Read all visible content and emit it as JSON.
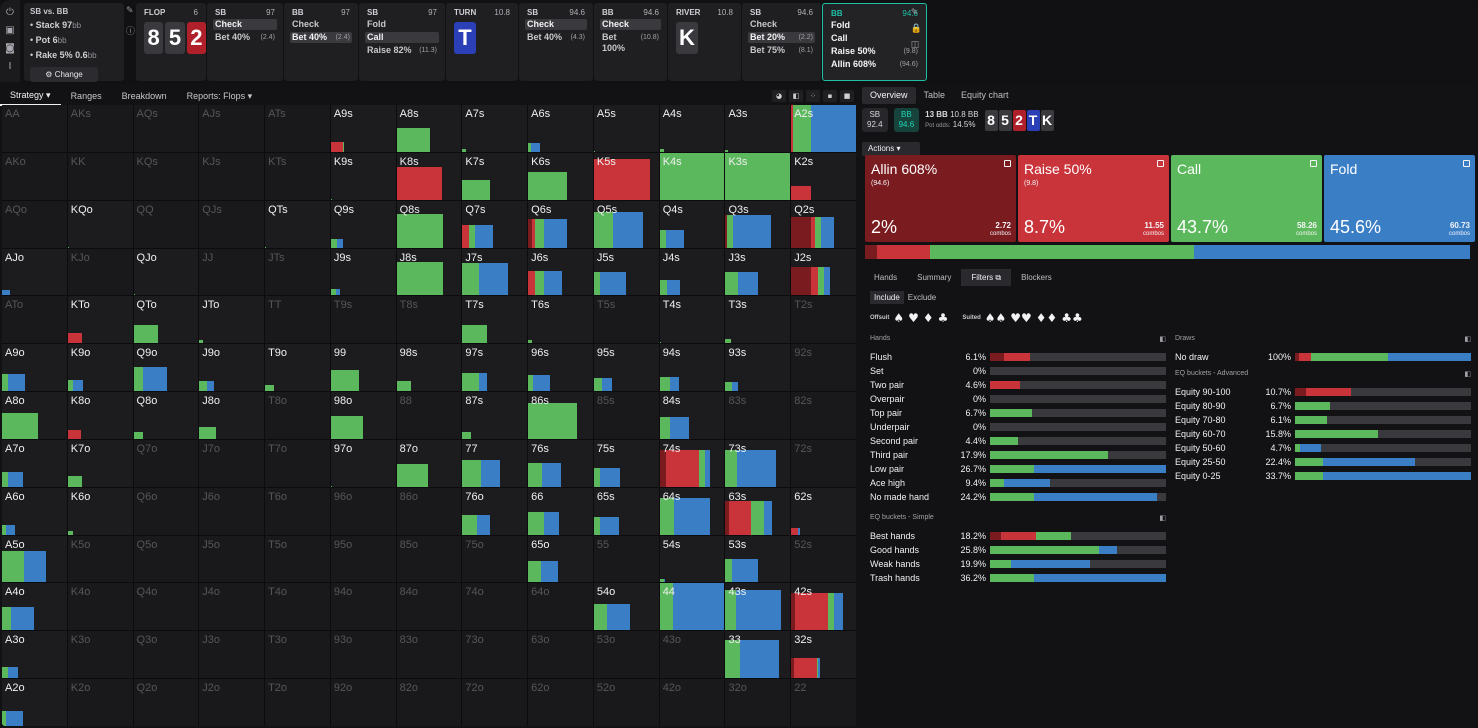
{
  "sidebar": {
    "icons": [
      "power-icon",
      "save-icon",
      "gamepad-icon",
      "text-cursor-icon"
    ]
  },
  "info": {
    "title": "SB vs. BB",
    "stack": "Stack 97",
    "stack_unit": "bb",
    "pot": "Pot 6",
    "pot_unit": "bb",
    "rake": "Rake 5% 0.6",
    "rake_unit": "bb",
    "change": "Change"
  },
  "colors": {
    "allin": "#7a1b1f",
    "raise": "#c9343a",
    "call": "#5cb85c",
    "fold": "#3a7fc6",
    "accent": "#1fbfa6"
  },
  "spots": [
    {
      "type": "board",
      "label": "FLOP",
      "stack": "6",
      "cards": [
        {
          "r": "8",
          "s": "s"
        },
        {
          "r": "5",
          "s": "s"
        },
        {
          "r": "2",
          "s": "h"
        }
      ]
    },
    {
      "type": "action",
      "label": "SB",
      "stack": "97",
      "actions": [
        {
          "n": "Check",
          "v": "",
          "sel": true
        },
        {
          "n": "Bet 40%",
          "v": "(2.4)",
          "sel": false
        }
      ]
    },
    {
      "type": "action",
      "label": "BB",
      "stack": "97",
      "actions": [
        {
          "n": "Check",
          "v": "",
          "sel": false
        },
        {
          "n": "Bet 40%",
          "v": "(2.4)",
          "sel": true
        }
      ]
    },
    {
      "type": "action",
      "label": "SB",
      "stack": "97",
      "actions": [
        {
          "n": "Fold",
          "v": "",
          "sel": false
        },
        {
          "n": "Call",
          "v": "",
          "sel": true
        },
        {
          "n": "Raise 82%",
          "v": "(11.3)",
          "sel": false
        }
      ]
    },
    {
      "type": "board",
      "label": "TURN",
      "stack": "10.8",
      "cards": [
        {
          "r": "T",
          "s": "d"
        }
      ]
    },
    {
      "type": "action",
      "label": "SB",
      "stack": "94.6",
      "actions": [
        {
          "n": "Check",
          "v": "",
          "sel": true
        },
        {
          "n": "Bet 40%",
          "v": "(4.3)",
          "sel": false
        }
      ]
    },
    {
      "type": "action",
      "label": "BB",
      "stack": "94.6",
      "actions": [
        {
          "n": "Check",
          "v": "",
          "sel": true
        },
        {
          "n": "Bet 100%",
          "v": "(10.8)",
          "sel": false
        }
      ]
    },
    {
      "type": "board",
      "label": "RIVER",
      "stack": "10.8",
      "cards": [
        {
          "r": "K",
          "s": "s"
        }
      ]
    },
    {
      "type": "action",
      "label": "SB",
      "stack": "94.6",
      "actions": [
        {
          "n": "Check",
          "v": "",
          "sel": false
        },
        {
          "n": "Bet 20%",
          "v": "(2.2)",
          "sel": true
        },
        {
          "n": "Bet 75%",
          "v": "(8.1)",
          "sel": false
        }
      ]
    },
    {
      "type": "active",
      "label": "BB",
      "stack": "94.6",
      "actions": [
        {
          "n": "Fold",
          "v": "",
          "sel": false
        },
        {
          "n": "Call",
          "v": "",
          "sel": false
        },
        {
          "n": "Raise 50%",
          "v": "(9.8)",
          "sel": false
        },
        {
          "n": "Allin 608%",
          "v": "(94.6)",
          "sel": false
        }
      ]
    }
  ],
  "grid_tabs": [
    "Strategy",
    "Ranges",
    "Breakdown",
    "Reports: Flops"
  ],
  "grid": [
    [
      "AA",
      "",
      "",
      0
    ],
    [
      "AKs",
      "",
      "",
      0
    ],
    [
      "AQs",
      "",
      "",
      0
    ],
    [
      "AJs",
      "",
      "",
      0
    ],
    [
      "ATs",
      "",
      "",
      0
    ],
    [
      "A9s",
      "",
      "0,0.18,0.02,0",
      1
    ],
    [
      "A8s",
      "",
      "0,0,0.52,0",
      1
    ],
    [
      "A7s",
      "",
      "0,0,0.06,0",
      1
    ],
    [
      "A6s",
      "",
      "0,0,0.04,0.14",
      1
    ],
    [
      "A5s",
      "",
      "0,0,0.02,0",
      1
    ],
    [
      "A4s",
      "",
      "0,0,0.06,0",
      1
    ],
    [
      "A3s",
      "",
      "0,0,0.04,0",
      1
    ],
    [
      "A2s",
      "",
      "0,0.02,0.28,0.7",
      1
    ],
    [
      "AKo",
      "",
      "",
      0
    ],
    [
      "KK",
      "",
      "",
      0
    ],
    [
      "KQs",
      "",
      "",
      0
    ],
    [
      "KJs",
      "",
      "",
      0
    ],
    [
      "KTs",
      "",
      "",
      0
    ],
    [
      "K9s",
      "",
      "0,0,0.02,0",
      1
    ],
    [
      "K8s",
      "",
      "0,0.7,0,0",
      1
    ],
    [
      "K7s",
      "",
      "0,0,0.42,0",
      1
    ],
    [
      "K6s",
      "",
      "0,0,0.6,0",
      1
    ],
    [
      "K5s",
      "",
      "0,0.86,0,0",
      1
    ],
    [
      "K4s",
      "",
      "0,0,1,0",
      1
    ],
    [
      "K3s",
      "",
      "0,0,1,0",
      1
    ],
    [
      "K2s",
      "",
      "0,0.3,0,0",
      1
    ],
    [
      "AQo",
      "",
      "",
      0
    ],
    [
      "KQo",
      "",
      "0,0,0.02,0",
      1
    ],
    [
      "QQ",
      "",
      "",
      0
    ],
    [
      "QJs",
      "",
      "",
      0
    ],
    [
      "QTs",
      "",
      "0,0,0.02,0",
      1
    ],
    [
      "Q9s",
      "",
      "0,0,0.1,0.08",
      1
    ],
    [
      "Q8s",
      "",
      "0,0,0.72,0",
      1
    ],
    [
      "Q7s",
      "",
      "0,0.1,0.1,0.28",
      1
    ],
    [
      "Q6s",
      "",
      "0.06,0.04,0.14,0.36",
      1
    ],
    [
      "Q5s",
      "",
      "0,0,0.3,0.46",
      1
    ],
    [
      "Q4s",
      "",
      "0,0,0.1,0.28",
      1
    ],
    [
      "Q3s",
      "",
      "0.02,0,0.1,0.58",
      1
    ],
    [
      "Q2s",
      "",
      "0.3,0.06,0.1,0.2",
      1
    ],
    [
      "AJo",
      "",
      "0,0,0,0.12",
      1
    ],
    [
      "KJo",
      "",
      "",
      0
    ],
    [
      "QJo",
      "",
      "0,0,0.03,0",
      1
    ],
    [
      "JJ",
      "",
      "",
      0
    ],
    [
      "JTs",
      "",
      "",
      0
    ],
    [
      "J9s",
      "",
      "0,0,0.08,0.06",
      1
    ],
    [
      "J8s",
      "",
      "0,0,0.72,0",
      1
    ],
    [
      "J7s",
      "",
      "0,0,0.26,0.44",
      1
    ],
    [
      "J6s",
      "",
      "0,0.1,0.14,0.28",
      1
    ],
    [
      "J5s",
      "",
      "0,0,0.1,0.4",
      1
    ],
    [
      "J4s",
      "",
      "0,0,0.12,0.2",
      1
    ],
    [
      "J3s",
      "",
      "0,0,0.2,0.3",
      1
    ],
    [
      "J2s",
      "",
      "0.3,0.12,0.08,0.1",
      1
    ],
    [
      "ATo",
      "",
      "",
      0
    ],
    [
      "KTo",
      "",
      "0,0.22,0,0",
      1
    ],
    [
      "QTo",
      "",
      "0,0,0.38,0",
      1
    ],
    [
      "JTo",
      "",
      "0,0,0.06,0",
      1
    ],
    [
      "TT",
      "",
      "",
      0
    ],
    [
      "T9s",
      "",
      "",
      0
    ],
    [
      "T8s",
      "",
      "",
      0
    ],
    [
      "T7s",
      "",
      "0,0,0.38,0",
      1
    ],
    [
      "T6s",
      "",
      "0,0,0.06,0",
      1
    ],
    [
      "T5s",
      "",
      "",
      0
    ],
    [
      "T4s",
      "",
      "0,0,0.02,0",
      1
    ],
    [
      "T3s",
      "",
      "0,0,0.08,0",
      1
    ],
    [
      "T2s",
      "",
      "",
      0
    ],
    [
      "A9o",
      "",
      "0,0,0.1,0.26",
      1
    ],
    [
      "K9o",
      "",
      "0,0,0.08,0.16",
      1
    ],
    [
      "Q9o",
      "",
      "0,0,0.14,0.38",
      1
    ],
    [
      "J9o",
      "",
      "0,0,0.12,0.1",
      1
    ],
    [
      "T9o",
      "",
      "0,0,0.14,0",
      1
    ],
    [
      "99",
      "",
      "0,0,0.44,0",
      1
    ],
    [
      "98s",
      "",
      "0,0,0.22,0",
      1
    ],
    [
      "97s",
      "",
      "0,0,0.26,0.12",
      1
    ],
    [
      "96s",
      "",
      "0,0,0.08,0.26",
      1
    ],
    [
      "95s",
      "",
      "0,0,0.12,0.16",
      1
    ],
    [
      "94s",
      "",
      "0,0,0.16,0.14",
      1
    ],
    [
      "93s",
      "",
      "0,0,0.1,0.1",
      1
    ],
    [
      "92s",
      "",
      "",
      0
    ],
    [
      "A8o",
      "",
      "0,0,0.56,0",
      1
    ],
    [
      "K8o",
      "",
      "0,0.2,0,0",
      1
    ],
    [
      "Q8o",
      "",
      "0,0,0.14,0",
      1
    ],
    [
      "J8o",
      "",
      "0,0,0.26,0",
      1
    ],
    [
      "T8o",
      "",
      "",
      0
    ],
    [
      "98o",
      "",
      "0,0,0.5,0",
      1
    ],
    [
      "88",
      "",
      "",
      0
    ],
    [
      "87s",
      "",
      "0,0,0.14,0",
      1
    ],
    [
      "86s",
      "",
      "0,0,0.76,0",
      1
    ],
    [
      "85s",
      "",
      "",
      0
    ],
    [
      "84s",
      "",
      "0,0,0.16,0.3",
      1
    ],
    [
      "83s",
      "",
      "",
      0
    ],
    [
      "82s",
      "",
      "",
      0
    ],
    [
      "A7o",
      "",
      "0,0,0.1,0.22",
      1
    ],
    [
      "K7o",
      "",
      "0,0,0.22,0",
      1
    ],
    [
      "Q7o",
      "",
      "",
      0
    ],
    [
      "J7o",
      "",
      "",
      0
    ],
    [
      "T7o",
      "",
      "",
      0
    ],
    [
      "97o",
      "",
      "0,0,0.02,0",
      1
    ],
    [
      "87o",
      "",
      "0,0,0.48,0",
      1
    ],
    [
      "77",
      "",
      "0,0,0.28,0.3",
      1
    ],
    [
      "76s",
      "",
      "0,0,0.22,0.28",
      1
    ],
    [
      "75s",
      "",
      "0,0,0.1,0.3",
      1
    ],
    [
      "74s",
      "",
      "0.1,0.5,0.1,0.08",
      1
    ],
    [
      "73s",
      "",
      "0,0,0.18,0.6",
      1
    ],
    [
      "72s",
      "",
      "",
      0
    ],
    [
      "A6o",
      "",
      "0,0,0.06,0.14",
      1
    ],
    [
      "K6o",
      "",
      "0,0,0.08,0",
      1
    ],
    [
      "Q6o",
      "",
      "",
      0
    ],
    [
      "J6o",
      "",
      "",
      0
    ],
    [
      "T6o",
      "",
      "",
      0
    ],
    [
      "96o",
      "",
      "",
      0
    ],
    [
      "86o",
      "",
      "",
      0
    ],
    [
      "76o",
      "",
      "0,0,0.22,0.2",
      1
    ],
    [
      "66",
      "",
      "0,0,0.24,0.24",
      1
    ],
    [
      "65s",
      "",
      "0,0,0.1,0.28",
      1
    ],
    [
      "64s",
      "",
      "0,0,0.22,0.56",
      1
    ],
    [
      "63s",
      "",
      "0.06,0.34,0.2,0.12",
      1
    ],
    [
      "62s",
      "",
      "0,0.1,0,0.04",
      1
    ],
    [
      "A5o",
      "",
      "0,0,0.34,0.34",
      1
    ],
    [
      "K5o",
      "",
      "",
      0
    ],
    [
      "Q5o",
      "",
      "",
      0
    ],
    [
      "J5o",
      "",
      "",
      0
    ],
    [
      "T5o",
      "",
      "",
      0
    ],
    [
      "95o",
      "",
      "",
      0
    ],
    [
      "85o",
      "",
      "",
      0
    ],
    [
      "75o",
      "",
      "",
      0
    ],
    [
      "65o",
      "",
      "0,0,0.2,0.26",
      1
    ],
    [
      "55",
      "",
      "",
      0
    ],
    [
      "54s",
      "",
      "0,0,0.06,0.02",
      1
    ],
    [
      "53s",
      "",
      "0,0,0.1,0.4",
      1
    ],
    [
      "52s",
      "",
      "",
      0
    ],
    [
      "A4o",
      "",
      "0,0,0.14,0.36",
      1
    ],
    [
      "K4o",
      "",
      "",
      0
    ],
    [
      "Q4o",
      "",
      "",
      0
    ],
    [
      "J4o",
      "",
      "",
      0
    ],
    [
      "T4o",
      "",
      "",
      0
    ],
    [
      "94o",
      "",
      "",
      0
    ],
    [
      "84o",
      "",
      "",
      0
    ],
    [
      "74o",
      "",
      "",
      0
    ],
    [
      "64o",
      "",
      "",
      0
    ],
    [
      "54o",
      "",
      "0,0,0.2,0.36",
      1
    ],
    [
      "44",
      "",
      "0,0,0.2,0.8",
      1
    ],
    [
      "43s",
      "",
      "0,0,0.16,0.7",
      1
    ],
    [
      "42s",
      "",
      "0.06,0.5,0.1,0.14",
      1
    ],
    [
      "A3o",
      "",
      "0,0,0.1,0.14",
      1
    ],
    [
      "K3o",
      "",
      "",
      0
    ],
    [
      "Q3o",
      "",
      "",
      0
    ],
    [
      "J3o",
      "",
      "",
      0
    ],
    [
      "T3o",
      "",
      "",
      0
    ],
    [
      "93o",
      "",
      "",
      0
    ],
    [
      "83o",
      "",
      "",
      0
    ],
    [
      "73o",
      "",
      "",
      0
    ],
    [
      "63o",
      "",
      "",
      0
    ],
    [
      "53o",
      "",
      "",
      0
    ],
    [
      "43o",
      "",
      "",
      0
    ],
    [
      "33",
      "",
      "0,0,0.22,0.6",
      1
    ],
    [
      "32s",
      "",
      "0.04,0.36,0.02,0.02",
      1
    ],
    [
      "A2o",
      "",
      "0,0,0.06,0.26",
      1
    ],
    [
      "K2o",
      "",
      "",
      0
    ],
    [
      "Q2o",
      "",
      "",
      0
    ],
    [
      "J2o",
      "",
      "",
      0
    ],
    [
      "T2o",
      "",
      "",
      0
    ],
    [
      "92o",
      "",
      "",
      0
    ],
    [
      "82o",
      "",
      "",
      0
    ],
    [
      "72o",
      "",
      "",
      0
    ],
    [
      "62o",
      "",
      "",
      0
    ],
    [
      "52o",
      "",
      "",
      0
    ],
    [
      "42o",
      "",
      "",
      0
    ],
    [
      "32o",
      "",
      "",
      0
    ],
    [
      "22",
      "",
      "",
      0
    ]
  ],
  "right": {
    "tabs": [
      "Overview",
      "Table",
      "Equity chart"
    ],
    "players": [
      {
        "n": "SB",
        "v": "92.4"
      },
      {
        "n": "BB",
        "v": "94.6"
      }
    ],
    "pot": "13 BB",
    "pot2": "10.8 BB",
    "potodds_label": "Pot odds:",
    "potodds": "14.5%",
    "board": [
      {
        "r": "8",
        "s": "s"
      },
      {
        "r": "5",
        "s": "s"
      },
      {
        "r": "2",
        "s": "h"
      },
      {
        "r": "T",
        "s": "d"
      },
      {
        "r": "K",
        "s": "s"
      }
    ],
    "actions_label": "Actions",
    "actions": [
      {
        "name": "Allin 608%",
        "sub": "(94.6)",
        "pct": "2%",
        "combos": "2.72",
        "color": "#7a1b1f",
        "frac": 0.02
      },
      {
        "name": "Raise 50%",
        "sub": "(9.8)",
        "pct": "8.7%",
        "combos": "11.55",
        "color": "#c9343a",
        "frac": 0.087
      },
      {
        "name": "Call",
        "sub": "",
        "pct": "43.7%",
        "combos": "58.26",
        "color": "#5cb85c",
        "frac": 0.437
      },
      {
        "name": "Fold",
        "sub": "",
        "pct": "45.6%",
        "combos": "60.73",
        "color": "#3a7fc6",
        "frac": 0.456
      }
    ],
    "combos_label": "combos",
    "bottom_tabs": [
      "Hands",
      "Summary",
      "Filters",
      "Blockers"
    ],
    "include": "Include",
    "exclude": "Exclude",
    "offsuit": "Offsuit",
    "suited": "Suited",
    "hands_title": "Hands",
    "hands": [
      {
        "n": "Flush",
        "v": "6.1%",
        "b": [
          0.08,
          0.15,
          0,
          0
        ]
      },
      {
        "n": "Set",
        "v": "0%",
        "b": [
          0,
          0,
          0,
          0
        ]
      },
      {
        "n": "Two pair",
        "v": "4.6%",
        "b": [
          0,
          0.17,
          0,
          0
        ]
      },
      {
        "n": "Overpair",
        "v": "0%",
        "b": [
          0,
          0,
          0,
          0
        ]
      },
      {
        "n": "Top pair",
        "v": "6.7%",
        "b": [
          0,
          0,
          0.24,
          0
        ]
      },
      {
        "n": "Underpair",
        "v": "0%",
        "b": [
          0,
          0,
          0,
          0
        ]
      },
      {
        "n": "Second pair",
        "v": "4.4%",
        "b": [
          0,
          0,
          0.16,
          0
        ]
      },
      {
        "n": "Third pair",
        "v": "17.9%",
        "b": [
          0,
          0,
          0.67,
          0
        ]
      },
      {
        "n": "Low pair",
        "v": "26.7%",
        "b": [
          0,
          0,
          0.25,
          0.75
        ]
      },
      {
        "n": "Ace high",
        "v": "9.4%",
        "b": [
          0,
          0,
          0.08,
          0.26
        ]
      },
      {
        "n": "No made hand",
        "v": "24.2%",
        "b": [
          0,
          0,
          0.25,
          0.7
        ]
      }
    ],
    "eqsimple_title": "EQ buckets - Simple",
    "eqsimple": [
      {
        "n": "Best hands",
        "v": "18.2%",
        "b": [
          0.06,
          0.2,
          0.2,
          0
        ]
      },
      {
        "n": "Good hands",
        "v": "25.8%",
        "b": [
          0,
          0,
          0.62,
          0.1
        ]
      },
      {
        "n": "Weak hands",
        "v": "19.9%",
        "b": [
          0,
          0,
          0.12,
          0.45
        ]
      },
      {
        "n": "Trash hands",
        "v": "36.2%",
        "b": [
          0,
          0,
          0.25,
          0.75
        ]
      }
    ],
    "draws_title": "Draws",
    "draws": [
      {
        "n": "No draw",
        "v": "100%",
        "b": [
          0.02,
          0.07,
          0.44,
          0.47
        ]
      }
    ],
    "eqadv_title": "EQ buckets - Advanced",
    "eqadv": [
      {
        "n": "Equity 90-100",
        "v": "10.7%",
        "b": [
          0.06,
          0.26,
          0,
          0
        ]
      },
      {
        "n": "Equity 80-90",
        "v": "6.7%",
        "b": [
          0,
          0,
          0.2,
          0
        ]
      },
      {
        "n": "Equity 70-80",
        "v": "6.1%",
        "b": [
          0,
          0,
          0.18,
          0
        ]
      },
      {
        "n": "Equity 60-70",
        "v": "15.8%",
        "b": [
          0,
          0,
          0.47,
          0
        ]
      },
      {
        "n": "Equity 50-60",
        "v": "4.7%",
        "b": [
          0,
          0,
          0.03,
          0.12
        ]
      },
      {
        "n": "Equity 25-50",
        "v": "22.4%",
        "b": [
          0,
          0,
          0.16,
          0.52
        ]
      },
      {
        "n": "Equity 0-25",
        "v": "33.7%",
        "b": [
          0,
          0,
          0.16,
          0.84
        ]
      }
    ]
  }
}
